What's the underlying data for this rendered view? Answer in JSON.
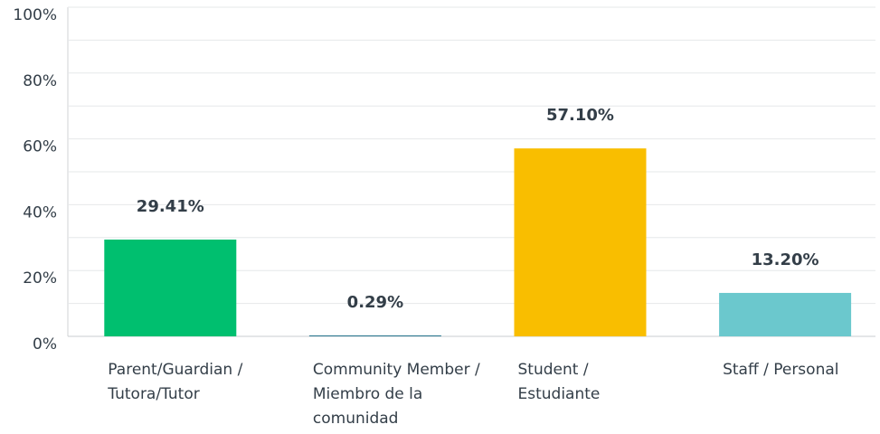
{
  "chart_data": {
    "type": "bar",
    "categories": [
      "Parent/Guardian / Tutora/Tutor",
      "Community Member / Miembro de la comunidad",
      "Student / Estudiante",
      "Staff / Personal"
    ],
    "values": [
      29.41,
      0.29,
      57.1,
      13.2
    ],
    "value_labels": [
      "29.41%",
      "0.29%",
      "57.10%",
      "13.20%"
    ],
    "colors": [
      "#00bf6f",
      "#2e7a91",
      "#f9be00",
      "#6bc8cd"
    ],
    "ylim": [
      0,
      100
    ],
    "yticks": [
      {
        "value": 0,
        "label": "0%"
      },
      {
        "value": 20,
        "label": "20%"
      },
      {
        "value": 40,
        "label": "40%"
      },
      {
        "value": 60,
        "label": "60%"
      },
      {
        "value": 80,
        "label": "80%"
      },
      {
        "value": 100,
        "label": "100%"
      }
    ],
    "minor_yticks": [
      10,
      30,
      50,
      70,
      90
    ],
    "grid": true
  }
}
